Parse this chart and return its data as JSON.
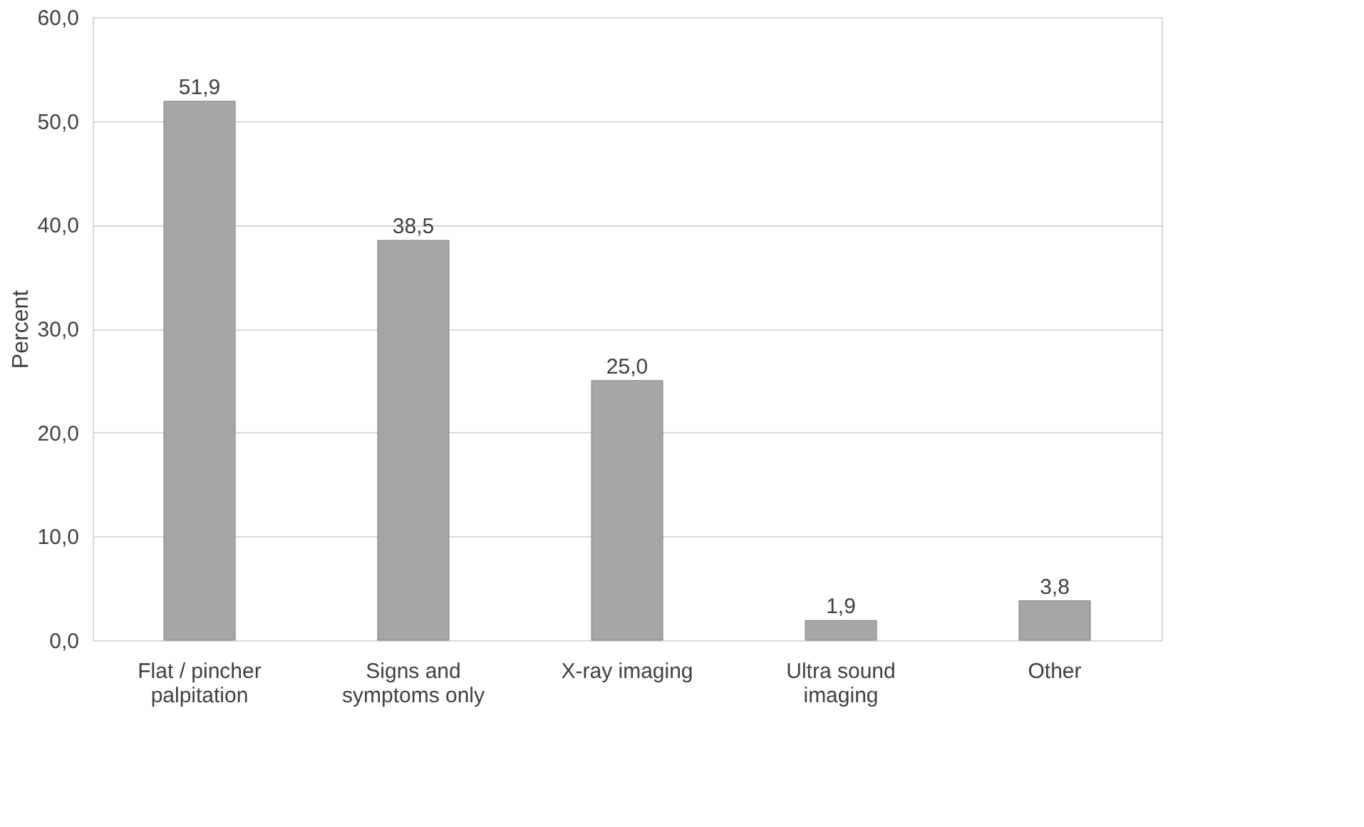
{
  "chart_data": {
    "type": "bar",
    "ylabel": "Percent",
    "categories": [
      "Flat / pincher palpitation",
      "Signs and symptoms only",
      "X-ray imaging",
      "Ultra sound imaging",
      "Other"
    ],
    "values": [
      51.9,
      38.5,
      25.0,
      1.9,
      3.8
    ],
    "value_labels": [
      "51,9",
      "38,5",
      "25,0",
      "1,9",
      "3,8"
    ],
    "color": "#a6a6a6",
    "ylim": [
      0,
      60
    ],
    "yticks": [
      {
        "value": 0,
        "label": "0,0"
      },
      {
        "value": 10,
        "label": "10,0"
      },
      {
        "value": 20,
        "label": "20,0"
      },
      {
        "value": 30,
        "label": "30,0"
      },
      {
        "value": 40,
        "label": "40,0"
      },
      {
        "value": 50,
        "label": "50,0"
      },
      {
        "value": 60,
        "label": "60,0"
      }
    ],
    "grid": "y"
  }
}
